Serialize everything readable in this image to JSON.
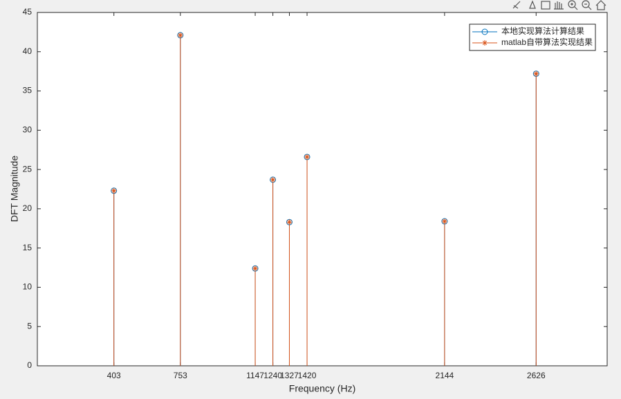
{
  "chart_data": {
    "type": "stem",
    "xlabel": "Frequency (Hz)",
    "ylabel": "DFT Magnitude",
    "x": [
      403,
      753,
      1147,
      1240,
      1327,
      1420,
      2144,
      2626
    ],
    "series": [
      {
        "name": "本地实现算法计算结果",
        "color": "#0072bd",
        "marker": "circle",
        "values": [
          22.3,
          42.1,
          12.4,
          23.7,
          18.3,
          26.6,
          18.4,
          37.2
        ]
      },
      {
        "name": "matlab自带算法实现结果",
        "color": "#d95319",
        "marker": "asterisk",
        "values": [
          22.3,
          42.1,
          12.4,
          23.7,
          18.3,
          26.6,
          18.4,
          37.2
        ]
      }
    ],
    "xlim": [
      0,
      3000
    ],
    "xticks": [
      403,
      753,
      1147,
      1240,
      1327,
      1420,
      2144,
      2626
    ],
    "ylim": [
      0,
      45
    ],
    "yticks": [
      0,
      5,
      10,
      15,
      20,
      25,
      30,
      35,
      40,
      45
    ],
    "grid": false,
    "legend": "northeast"
  }
}
